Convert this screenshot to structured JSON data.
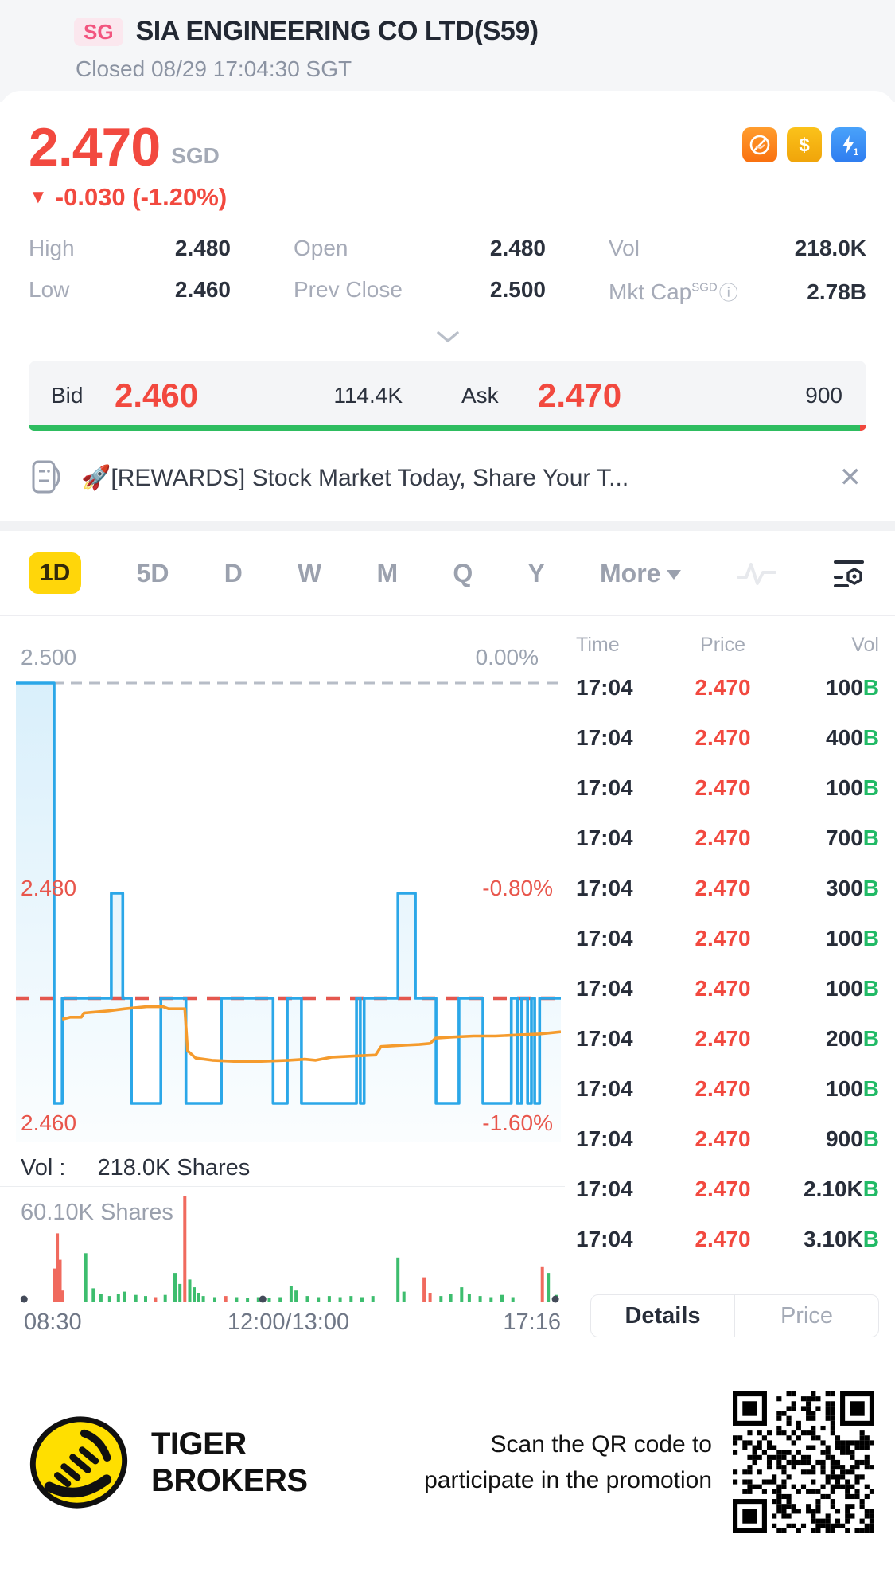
{
  "header": {
    "market_badge": "SG",
    "title": "SIA ENGINEERING CO LTD(S59)",
    "status": "Closed 08/29 17:04:30 SGT"
  },
  "quote": {
    "price": "2.470",
    "currency": "SGD",
    "change_arrow": "▼",
    "change": "-0.030 (-1.20%)",
    "accent_red": "#f2493f",
    "stats": [
      {
        "label": "High",
        "value": "2.480"
      },
      {
        "label": "Open",
        "value": "2.480"
      },
      {
        "label": "Vol",
        "value": "218.0K"
      },
      {
        "label": "Low",
        "value": "2.460"
      },
      {
        "label": "Prev Close",
        "value": "2.500"
      },
      {
        "label": "Mkt Cap",
        "label_sup": "SGD",
        "has_info_icon": true,
        "value": "2.78B"
      }
    ]
  },
  "bid_ask": {
    "bid_label": "Bid",
    "bid_price": "2.460",
    "bid_size": "114.4K",
    "ask_label": "Ask",
    "ask_price": "2.470",
    "ask_size": "900",
    "green_ratio": 0.992,
    "green_color": "#2ebd60",
    "red_color": "#f0483e"
  },
  "banner": {
    "emoji": "🚀",
    "text": "[REWARDS] Stock Market Today, Share Your T...",
    "close_glyph": "✕"
  },
  "tabs": {
    "items": [
      "1D",
      "5D",
      "D",
      "W",
      "M",
      "Q",
      "Y"
    ],
    "active": "1D",
    "more_label": "More"
  },
  "chart_data": {
    "type": "line",
    "title": "1D intraday price chart",
    "x_labels": [
      "08:30",
      "12:00/13:00",
      "17:16"
    ],
    "y_levels": {
      "top": {
        "price": "2.500",
        "pct": "0.00%"
      },
      "mid": {
        "price": "2.480",
        "pct": "-0.80%"
      },
      "bottom": {
        "price": "2.460",
        "pct": "-1.60%"
      }
    },
    "current_price_line": 2.47,
    "prev_close_line": 2.5,
    "ylim": [
      2.456,
      2.5005
    ],
    "line_color": "#2ba7e8",
    "avg_color": "#f59b2d",
    "prev_close_dash_color": "#b7bdc7",
    "current_dash_color": "#e4574e",
    "price_steps": [
      [
        0,
        2.5
      ],
      [
        7,
        2.5
      ],
      [
        7,
        2.46
      ],
      [
        8.5,
        2.46
      ],
      [
        8.5,
        2.47
      ],
      [
        17.5,
        2.47
      ],
      [
        17.5,
        2.48
      ],
      [
        19.6,
        2.48
      ],
      [
        19.6,
        2.47
      ],
      [
        21.2,
        2.47
      ],
      [
        21.2,
        2.46
      ],
      [
        26.6,
        2.46
      ],
      [
        26.6,
        2.47
      ],
      [
        31.2,
        2.47
      ],
      [
        31.2,
        2.46
      ],
      [
        37.7,
        2.46
      ],
      [
        37.7,
        2.47
      ],
      [
        47.2,
        2.47
      ],
      [
        47.2,
        2.46
      ],
      [
        49.8,
        2.46
      ],
      [
        49.8,
        2.47
      ],
      [
        52.4,
        2.47
      ],
      [
        52.4,
        2.46
      ],
      [
        62.5,
        2.46
      ],
      [
        62.5,
        2.47
      ],
      [
        63.2,
        2.47
      ],
      [
        63.2,
        2.46
      ],
      [
        63.9,
        2.46
      ],
      [
        63.9,
        2.47
      ],
      [
        70.1,
        2.47
      ],
      [
        70.1,
        2.48
      ],
      [
        73.3,
        2.48
      ],
      [
        73.3,
        2.47
      ],
      [
        77.1,
        2.47
      ],
      [
        77.1,
        2.46
      ],
      [
        81.3,
        2.46
      ],
      [
        81.3,
        2.47
      ],
      [
        85.7,
        2.47
      ],
      [
        85.7,
        2.46
      ],
      [
        90.9,
        2.46
      ],
      [
        90.9,
        2.47
      ],
      [
        92.0,
        2.47
      ],
      [
        92.0,
        2.46
      ],
      [
        92.8,
        2.46
      ],
      [
        92.8,
        2.47
      ],
      [
        93.9,
        2.47
      ],
      [
        93.9,
        2.46
      ],
      [
        94.6,
        2.46
      ],
      [
        94.6,
        2.47
      ],
      [
        95.2,
        2.47
      ],
      [
        95.2,
        2.46
      ],
      [
        96.1,
        2.46
      ],
      [
        96.1,
        2.47
      ],
      [
        100,
        2.47
      ]
    ],
    "avg_line": [
      [
        8.5,
        2.468
      ],
      [
        10,
        2.4682
      ],
      [
        12,
        2.4682
      ],
      [
        12.5,
        2.4686
      ],
      [
        17,
        2.4688
      ],
      [
        20,
        2.469
      ],
      [
        24,
        2.4692
      ],
      [
        27,
        2.4692
      ],
      [
        28,
        2.469
      ],
      [
        31,
        2.469
      ],
      [
        31.5,
        2.465
      ],
      [
        33,
        2.4643
      ],
      [
        36,
        2.4641
      ],
      [
        40,
        2.464
      ],
      [
        45,
        2.464
      ],
      [
        50,
        2.4641
      ],
      [
        53,
        2.4642
      ],
      [
        55,
        2.4641
      ],
      [
        58,
        2.4644
      ],
      [
        62,
        2.4645
      ],
      [
        66,
        2.4646
      ],
      [
        67,
        2.4654
      ],
      [
        70,
        2.4655
      ],
      [
        74,
        2.4656
      ],
      [
        76,
        2.4657
      ],
      [
        77,
        2.4662
      ],
      [
        80,
        2.4663
      ],
      [
        84,
        2.4664
      ],
      [
        88,
        2.4664
      ],
      [
        92,
        2.4665
      ],
      [
        96,
        2.4666
      ],
      [
        100,
        2.4668
      ]
    ],
    "vol_title": "Vol :",
    "vol_value": "218.0K Shares",
    "vol_scale_label": "60.10K Shares",
    "volume_bars": [
      [
        7.0,
        0.3,
        "r"
      ],
      [
        7.6,
        0.62,
        "r"
      ],
      [
        8.1,
        0.38,
        "r"
      ],
      [
        8.6,
        0.1,
        "r"
      ],
      [
        12.8,
        0.44,
        "g"
      ],
      [
        14.2,
        0.12,
        "g"
      ],
      [
        15.6,
        0.07,
        "g"
      ],
      [
        17.2,
        0.05,
        "g"
      ],
      [
        18.8,
        0.07,
        "g"
      ],
      [
        20.0,
        0.09,
        "g"
      ],
      [
        22.0,
        0.06,
        "g"
      ],
      [
        23.8,
        0.05,
        "g"
      ],
      [
        25.6,
        0.04,
        "r"
      ],
      [
        27.4,
        0.06,
        "g"
      ],
      [
        29.2,
        0.26,
        "g"
      ],
      [
        30.1,
        0.16,
        "g"
      ],
      [
        31.0,
        0.96,
        "r"
      ],
      [
        31.9,
        0.2,
        "g"
      ],
      [
        32.7,
        0.13,
        "g"
      ],
      [
        33.5,
        0.08,
        "g"
      ],
      [
        34.4,
        0.05,
        "g"
      ],
      [
        36.5,
        0.04,
        "g"
      ],
      [
        38.5,
        0.05,
        "r"
      ],
      [
        40.5,
        0.04,
        "g"
      ],
      [
        42.5,
        0.03,
        "g"
      ],
      [
        44.5,
        0.04,
        "g"
      ],
      [
        46.5,
        0.03,
        "g"
      ],
      [
        48.5,
        0.04,
        "g"
      ],
      [
        50.5,
        0.14,
        "g"
      ],
      [
        51.4,
        0.1,
        "g"
      ],
      [
        53.5,
        0.05,
        "g"
      ],
      [
        55.5,
        0.04,
        "g"
      ],
      [
        57.5,
        0.05,
        "g"
      ],
      [
        59.5,
        0.04,
        "g"
      ],
      [
        61.5,
        0.05,
        "g"
      ],
      [
        63.5,
        0.04,
        "g"
      ],
      [
        65.5,
        0.05,
        "g"
      ],
      [
        70.1,
        0.4,
        "g"
      ],
      [
        71.2,
        0.09,
        "g"
      ],
      [
        74.9,
        0.22,
        "r"
      ],
      [
        76.0,
        0.08,
        "r"
      ],
      [
        78.0,
        0.05,
        "g"
      ],
      [
        79.8,
        0.07,
        "g"
      ],
      [
        81.8,
        0.13,
        "g"
      ],
      [
        83.2,
        0.07,
        "g"
      ],
      [
        85.2,
        0.05,
        "g"
      ],
      [
        87.2,
        0.04,
        "g"
      ],
      [
        89.2,
        0.06,
        "g"
      ],
      [
        91.2,
        0.04,
        "g"
      ],
      [
        96.6,
        0.32,
        "r"
      ],
      [
        97.7,
        0.26,
        "g"
      ],
      [
        99.2,
        0.06,
        "g"
      ]
    ],
    "bar_green": "#3dbd6e",
    "bar_red": "#f06a5e",
    "axis_dots_x_pct": [
      1.5,
      45.3,
      99.0
    ],
    "grid": false,
    "legend_position": "none"
  },
  "tape": {
    "headers": [
      "Time",
      "Price",
      "Vol"
    ],
    "rows": [
      {
        "time": "17:04",
        "price": "2.470",
        "vol": "100",
        "side": "B"
      },
      {
        "time": "17:04",
        "price": "2.470",
        "vol": "400",
        "side": "B"
      },
      {
        "time": "17:04",
        "price": "2.470",
        "vol": "100",
        "side": "B"
      },
      {
        "time": "17:04",
        "price": "2.470",
        "vol": "700",
        "side": "B"
      },
      {
        "time": "17:04",
        "price": "2.470",
        "vol": "300",
        "side": "B"
      },
      {
        "time": "17:04",
        "price": "2.470",
        "vol": "100",
        "side": "B"
      },
      {
        "time": "17:04",
        "price": "2.470",
        "vol": "100",
        "side": "B"
      },
      {
        "time": "17:04",
        "price": "2.470",
        "vol": "200",
        "side": "B"
      },
      {
        "time": "17:04",
        "price": "2.470",
        "vol": "100",
        "side": "B"
      },
      {
        "time": "17:04",
        "price": "2.470",
        "vol": "900",
        "side": "B"
      },
      {
        "time": "17:04",
        "price": "2.470",
        "vol": "2.10K",
        "side": "B"
      },
      {
        "time": "17:04",
        "price": "2.470",
        "vol": "3.10K",
        "side": "B"
      }
    ]
  },
  "tape_tabs": {
    "details_label": "Details",
    "price_label": "Price"
  },
  "footer": {
    "brand_line1": "TIGER",
    "brand_line2": "BROKERS",
    "promo_line1": "Scan the QR code to",
    "promo_line2": "participate in the promotion"
  }
}
